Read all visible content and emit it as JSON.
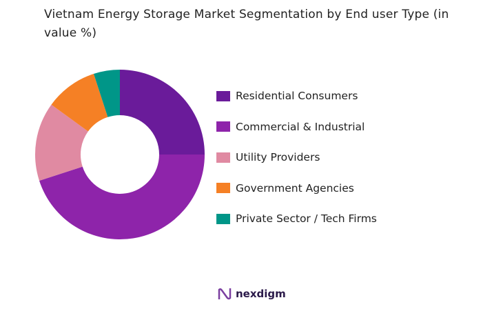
{
  "chart_data": {
    "type": "pie",
    "variant": "donut",
    "title": "Vietnam Energy Storage Market Segmentation by End user Type (in value %)",
    "categories": [
      "Residential Consumers",
      "Commercial & Industrial",
      "Utility Providers",
      "Government Agencies",
      "Private Sector / Tech Firms"
    ],
    "values": [
      25,
      45,
      15,
      10,
      5
    ],
    "colors": [
      "#6a1b9a",
      "#8e24aa",
      "#e08aa2",
      "#f58025",
      "#009688"
    ],
    "legend_position": "right"
  },
  "branding": {
    "logo_text": "nexdigm"
  }
}
